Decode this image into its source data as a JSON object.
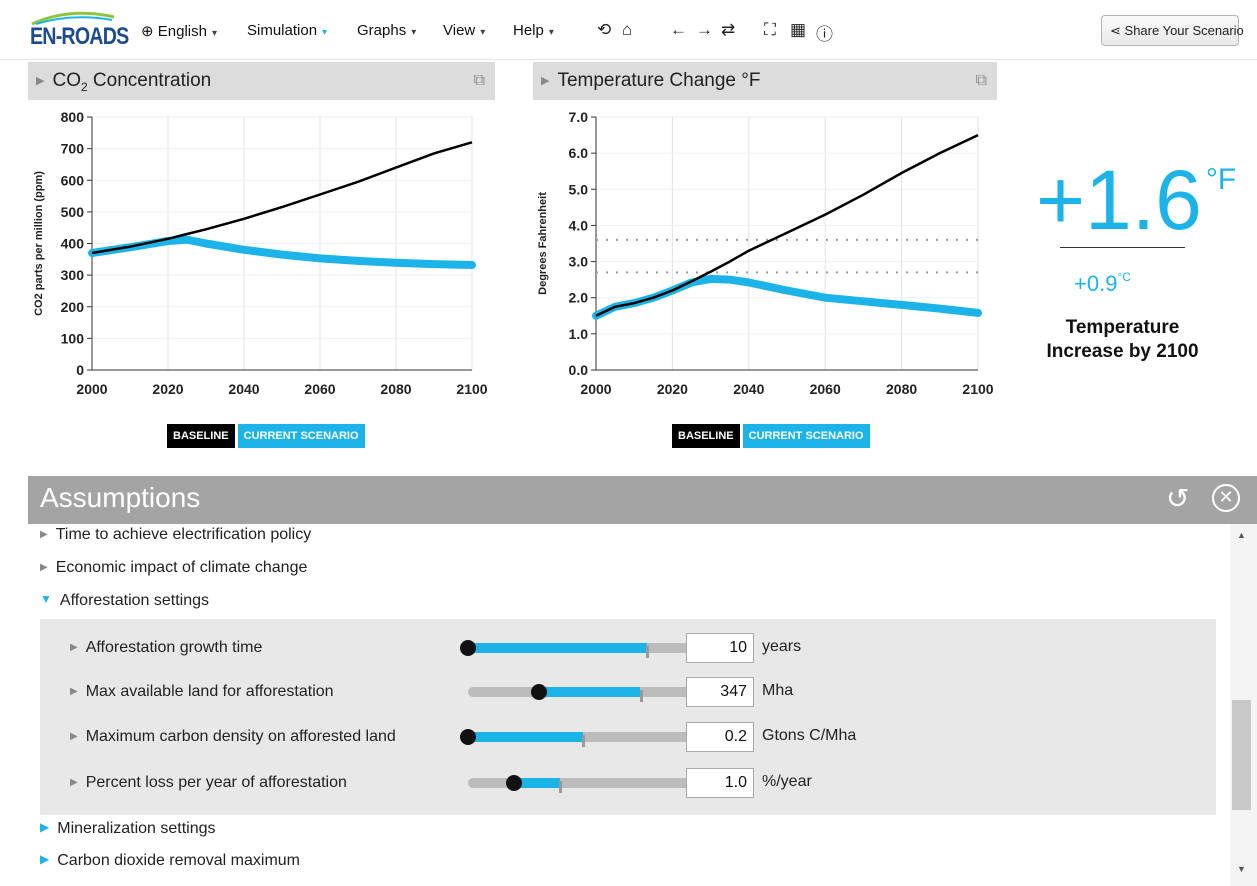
{
  "app": {
    "logo_text": "EN-ROADS"
  },
  "menu": {
    "language": "English",
    "simulation": "Simulation",
    "graphs": "Graphs",
    "view": "View",
    "help": "Help"
  },
  "toolbar_icons": [
    "undo-icon",
    "home-icon",
    "back-icon",
    "forward-icon",
    "redo-icon",
    "fullscreen-icon",
    "grid-icon",
    "info-icon"
  ],
  "share_label": "Share Your Scenario",
  "colors": {
    "accent": "#1cb4e8",
    "baseline": "#000000",
    "header_gray": "#a4a4a4"
  },
  "graph1": {
    "title_pre": "CO",
    "title_sub": "2",
    "title_post": " Concentration",
    "legend_baseline": "BASELINE",
    "legend_current": "CURRENT SCENARIO"
  },
  "graph2": {
    "title": "Temperature Change °F",
    "legend_baseline": "BASELINE",
    "legend_current": "CURRENT SCENARIO"
  },
  "chart_data": [
    {
      "type": "line",
      "title": "CO2 Concentration",
      "xlabel": "",
      "ylabel": "CO2 parts per million (ppm)",
      "xlim": [
        2000,
        2100
      ],
      "ylim": [
        0,
        800
      ],
      "xticks": [
        2000,
        2020,
        2040,
        2060,
        2080,
        2100
      ],
      "yticks": [
        0,
        100,
        200,
        300,
        400,
        500,
        600,
        700,
        800
      ],
      "x": [
        2000,
        2010,
        2020,
        2025,
        2030,
        2040,
        2050,
        2060,
        2070,
        2080,
        2090,
        2100
      ],
      "series": [
        {
          "name": "BASELINE",
          "color": "#000000",
          "values": [
            370,
            390,
            415,
            430,
            445,
            478,
            515,
            555,
            595,
            640,
            685,
            720
          ]
        },
        {
          "name": "CURRENT SCENARIO",
          "color": "#1cb4e8",
          "values": [
            370,
            388,
            408,
            412,
            400,
            380,
            365,
            353,
            345,
            339,
            335,
            332
          ]
        }
      ]
    },
    {
      "type": "line",
      "title": "Temperature Change °F",
      "xlabel": "",
      "ylabel": "Degrees Fahrenheit",
      "xlim": [
        2000,
        2100
      ],
      "ylim": [
        0,
        7
      ],
      "xticks": [
        2000,
        2020,
        2040,
        2060,
        2080,
        2100
      ],
      "yticks": [
        "0.0",
        "1.0",
        "2.0",
        "3.0",
        "4.0",
        "5.0",
        "6.0",
        "7.0"
      ],
      "reference_lines": [
        2.7,
        3.6
      ],
      "x": [
        2000,
        2005,
        2010,
        2015,
        2020,
        2025,
        2030,
        2035,
        2040,
        2050,
        2060,
        2070,
        2080,
        2090,
        2100
      ],
      "series": [
        {
          "name": "BASELINE",
          "color": "#000000",
          "values": [
            1.5,
            1.75,
            1.85,
            2.0,
            2.2,
            2.45,
            2.72,
            3.0,
            3.3,
            3.8,
            4.3,
            4.85,
            5.45,
            6.0,
            6.5
          ]
        },
        {
          "name": "CURRENT SCENARIO",
          "color": "#1cb4e8",
          "values": [
            1.5,
            1.75,
            1.85,
            2.0,
            2.2,
            2.42,
            2.52,
            2.5,
            2.42,
            2.2,
            2.0,
            1.9,
            1.8,
            1.7,
            1.58
          ]
        }
      ]
    }
  ],
  "temperature": {
    "value_f": "+1.6",
    "unit_f": "°F",
    "value_c": "+0.9",
    "unit_c": "°C",
    "caption": "Temperature Increase by 2100"
  },
  "assumptions": {
    "title": "Assumptions",
    "rows": [
      {
        "label": "Time to achieve electrification policy"
      },
      {
        "label": "Economic impact of climate change"
      },
      {
        "label": "Afforestation settings"
      },
      {
        "label": "Mineralization settings"
      },
      {
        "label": "Carbon dioxide removal maximum"
      }
    ],
    "sliders": [
      {
        "label": "Afforestation growth time",
        "value": "10",
        "unit": "years",
        "knob": 0.0,
        "fill_end": 0.78,
        "default": 0.78
      },
      {
        "label": "Max available land for afforestation",
        "value": "347",
        "unit": "Mha",
        "knob": 0.31,
        "fill_end": 0.75,
        "default": 0.75
      },
      {
        "label": "Maximum carbon density on afforested land",
        "value": "0.2",
        "unit": "Gtons C/Mha",
        "knob": 0.0,
        "fill_end": 0.5,
        "default": 0.5
      },
      {
        "label": "Percent loss per year of afforestation",
        "value": "1.0",
        "unit": "%/year",
        "knob": 0.2,
        "fill_end": 0.4,
        "default": 0.4
      }
    ]
  }
}
